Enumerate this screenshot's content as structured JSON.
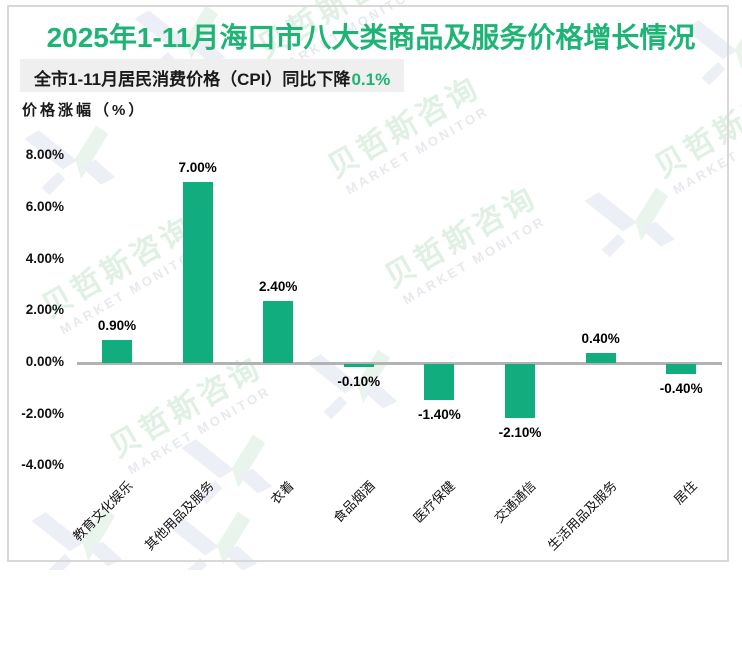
{
  "title": "2025年1-11月海口市八大类商品及服务价格增长情况",
  "subtitle": {
    "prefix": "全市1-11月居民消费价格（CPI）同比下降",
    "highlight": "0.1%"
  },
  "watermark": {
    "cn": "贝哲斯咨询",
    "en": "MARKET MONITOR"
  },
  "colors": {
    "title_green": "#1db476",
    "highlight_green": "#1db476",
    "bar_green": "#12ad7e",
    "zero_line_gray": "#b3b3b3",
    "subtitle_bg": "#efefef",
    "frame_gray": "#d8d8d8"
  },
  "chart_data": {
    "type": "bar",
    "title": "2025年1-11月海口市八大类商品及服务价格增长情况",
    "subtitle": "全市1-11月居民消费价格（CPI）同比下降0.1%",
    "ylabel": "价格涨幅（%）",
    "xlabel": "",
    "categories": [
      "教育文化娱乐",
      "其他用品及服务",
      "衣着",
      "食品烟酒",
      "医疗保健",
      "交通通信",
      "生活用品及服务",
      "居住"
    ],
    "values": [
      0.9,
      7.0,
      2.4,
      -0.1,
      -1.4,
      -2.1,
      0.4,
      -0.4
    ],
    "value_labels": [
      "0.90%",
      "7.00%",
      "2.40%",
      "-0.10%",
      "-1.40%",
      "-2.10%",
      "0.40%",
      "-0.40%"
    ],
    "yticks": [
      8,
      6,
      4,
      2,
      0,
      -2,
      -4
    ],
    "ytick_labels": [
      "8.00%",
      "6.00%",
      "4.00%",
      "2.00%",
      "0.00%",
      "-2.00%",
      "-4.00%"
    ],
    "ylim": [
      -4,
      8
    ],
    "grid": false,
    "legend": false,
    "bar_color": "#12ad7e"
  }
}
